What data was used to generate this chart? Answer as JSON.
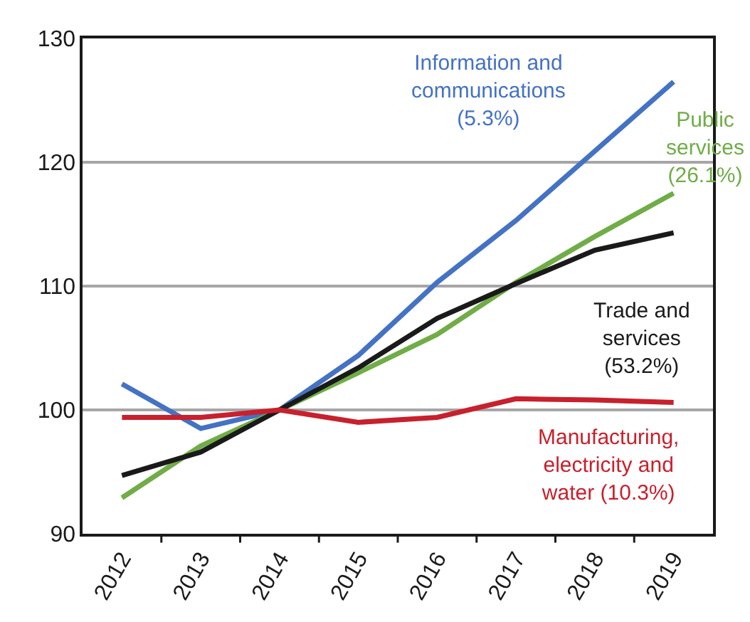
{
  "chart_data": {
    "type": "line",
    "categories": [
      "2012",
      "2013",
      "2014",
      "2015",
      "2016",
      "2017",
      "2018",
      "2019"
    ],
    "series": [
      {
        "name": "Information and\ncommunications\n(5.3%)",
        "color": "#4472c4",
        "values": [
          102.1,
          98.5,
          100,
          104.4,
          110.3,
          115.3,
          120.9,
          126.5
        ]
      },
      {
        "name": "Public\nservices\n(26.1%)",
        "color": "#70ad47",
        "values": [
          92.9,
          97.1,
          100,
          103.0,
          106.1,
          110.3,
          114.0,
          117.5
        ]
      },
      {
        "name": "Trade and\nservices\n(53.2%)",
        "color": "#1a1a1a",
        "values": [
          94.7,
          96.6,
          100,
          103.4,
          107.4,
          110.2,
          112.9,
          114.3
        ]
      },
      {
        "name": "Manufacturing,\nelectricity and\nwater (10.3%)",
        "color": "#c8202c",
        "values": [
          99.4,
          99.4,
          100,
          99.0,
          99.4,
          100.9,
          100.8,
          100.6
        ]
      }
    ],
    "ylim": [
      90,
      130
    ],
    "yticks": [
      90,
      100,
      110,
      120,
      130
    ],
    "grid": "y",
    "legend": false,
    "marker": "none",
    "line_style": "solid"
  }
}
